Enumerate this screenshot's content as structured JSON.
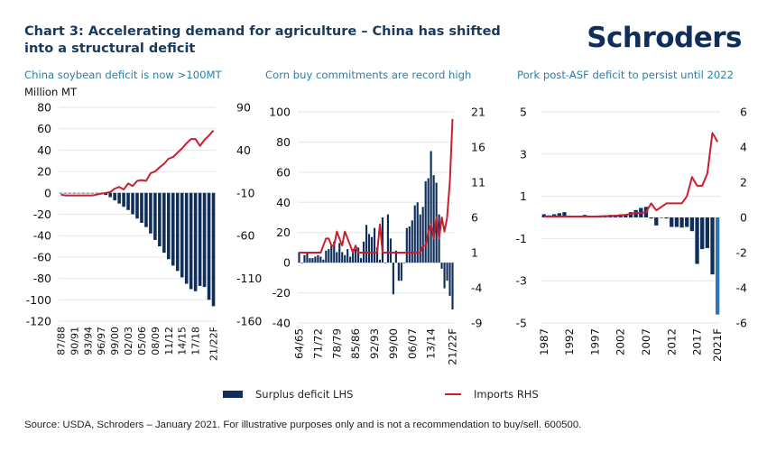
{
  "header": {
    "title": "Chart 3: Accelerating demand for agriculture – China has shifted into a structural deficit",
    "logo": "Schroders"
  },
  "colors": {
    "bar": "#0f2e5a",
    "bar_forecast": "#2e75b6",
    "line": "#c8202f",
    "grid": "#e6e6e6",
    "subtitle": "#2b7fa6"
  },
  "legend": {
    "bar_label": "Surplus deficit LHS",
    "line_label": "Imports RHS"
  },
  "footer": {
    "source": "Source: USDA, Schroders – January 2021. For illustrative purposes only and is not a recommendation to buy/sell. 600500."
  },
  "chart_data": [
    {
      "type": "bar",
      "title": "China soybean deficit is now >100MT",
      "ylabel": "Million MT",
      "xlabel": "",
      "grid": true,
      "legend": "bottom",
      "ylim_left": [
        -120,
        80
      ],
      "left_ticks": [
        80,
        60,
        40,
        20,
        0,
        -20,
        -40,
        -60,
        -80,
        -100,
        -120
      ],
      "ylim_right": [
        -160,
        90
      ],
      "right_ticks": [
        90,
        40,
        -10,
        -60,
        -110,
        -160
      ],
      "x_tick_labels": [
        "87/88",
        "90/91",
        "93/94",
        "96/97",
        "99/00",
        "02/03",
        "05/06",
        "08/09",
        "11/12",
        "14/15",
        "17/18",
        "21/22F"
      ],
      "categories": [
        "87/88",
        "88/89",
        "89/90",
        "90/91",
        "91/92",
        "92/93",
        "93/94",
        "94/95",
        "95/96",
        "96/97",
        "97/98",
        "98/99",
        "99/00",
        "00/01",
        "01/02",
        "02/03",
        "03/04",
        "04/05",
        "05/06",
        "06/07",
        "07/08",
        "08/09",
        "09/10",
        "10/11",
        "11/12",
        "12/13",
        "13/14",
        "14/15",
        "15/16",
        "16/17",
        "17/18",
        "18/19",
        "19/20",
        "20/21",
        "21/22F"
      ],
      "series": [
        {
          "name": "Surplus deficit LHS",
          "axis": "left",
          "values": [
            0,
            0,
            0,
            0,
            0,
            0,
            0,
            0,
            0,
            0,
            -2,
            -4,
            -7,
            -10,
            -13,
            -16,
            -20,
            -24,
            -28,
            -32,
            -38,
            -44,
            -50,
            -56,
            -62,
            -68,
            -73,
            -79,
            -85,
            -90,
            -92,
            -87,
            -88,
            -100,
            -106
          ]
        },
        {
          "name": "Imports RHS",
          "axis": "right",
          "values": [
            -12,
            -13,
            -13,
            -13,
            -13,
            -13,
            -13,
            -13,
            -12,
            -11,
            -10,
            -9,
            -5,
            -3,
            -6,
            1,
            -2,
            4,
            5,
            4,
            13,
            15,
            20,
            24,
            30,
            32,
            37,
            42,
            48,
            53,
            53,
            45,
            52,
            57,
            63
          ]
        }
      ]
    },
    {
      "type": "bar",
      "title": "Corn buy commitments are record high",
      "xlabel": "",
      "grid": true,
      "legend": "bottom",
      "ylim_left": [
        -40,
        100
      ],
      "left_ticks": [
        100,
        80,
        60,
        40,
        20,
        0,
        -20,
        -40
      ],
      "ylim_right": [
        -9,
        21
      ],
      "right_ticks": [
        21,
        16,
        11,
        6,
        1,
        -4,
        -9
      ],
      "x_tick_labels": [
        "64/65",
        "71/72",
        "78/79",
        "85/86",
        "92/93",
        "99/00",
        "06/07",
        "13/14",
        "21/22F"
      ],
      "categories": [
        "64/65",
        "65/66",
        "66/67",
        "67/68",
        "68/69",
        "69/70",
        "70/71",
        "71/72",
        "72/73",
        "73/74",
        "74/75",
        "75/76",
        "76/77",
        "77/78",
        "78/79",
        "79/80",
        "80/81",
        "81/82",
        "82/83",
        "83/84",
        "84/85",
        "85/86",
        "86/87",
        "87/88",
        "88/89",
        "89/90",
        "90/91",
        "91/92",
        "92/93",
        "93/94",
        "94/95",
        "95/96",
        "96/97",
        "97/98",
        "98/99",
        "99/00",
        "00/01",
        "01/02",
        "02/03",
        "03/04",
        "04/05",
        "05/06",
        "06/07",
        "07/08",
        "08/09",
        "09/10",
        "10/11",
        "11/12",
        "12/13",
        "13/14",
        "14/15",
        "15/16",
        "16/17",
        "17/18",
        "18/19",
        "19/20",
        "20/21",
        "21/22F"
      ],
      "series": [
        {
          "name": "Surplus deficit LHS",
          "axis": "left",
          "values": [
            7,
            0,
            5,
            7,
            3,
            3,
            4,
            5,
            4,
            2,
            8,
            9,
            12,
            14,
            7,
            13,
            7,
            5,
            9,
            4,
            9,
            9,
            10,
            3,
            14,
            25,
            19,
            17,
            23,
            10,
            2,
            30,
            0,
            32,
            16,
            -21,
            8,
            -12,
            -12,
            0,
            23,
            24,
            28,
            38,
            40,
            32,
            37,
            54,
            56,
            74,
            58,
            53,
            32,
            -4,
            -17,
            -12,
            -22,
            -31
          ]
        },
        {
          "name": "Imports RHS",
          "axis": "right",
          "values": [
            1,
            1,
            1,
            1,
            1,
            1,
            1,
            1,
            1,
            2,
            3,
            3,
            2,
            2,
            4,
            3,
            2,
            4,
            3,
            2,
            1,
            2,
            1,
            1,
            1,
            1,
            1,
            1,
            1,
            1,
            5,
            1,
            1,
            1,
            1,
            1,
            1,
            1,
            1,
            1,
            1,
            1,
            1,
            1,
            1,
            1,
            2,
            2,
            4,
            5,
            3,
            6,
            3,
            6,
            4,
            6,
            11,
            20
          ]
        }
      ]
    },
    {
      "type": "bar",
      "title": "Pork post-ASF deficit to persist until 2022",
      "xlabel": "",
      "grid": true,
      "legend": "bottom",
      "ylim_left": [
        -5,
        5
      ],
      "left_ticks": [
        5,
        3,
        1,
        -1,
        -3,
        -5
      ],
      "ylim_right": [
        -6,
        6
      ],
      "right_ticks": [
        6,
        4,
        2,
        0,
        -2,
        -4,
        -6
      ],
      "x_tick_labels": [
        "1987",
        "1992",
        "1997",
        "2002",
        "2007",
        "2012",
        "2017",
        "2021F"
      ],
      "categories": [
        "1987",
        "1988",
        "1989",
        "1990",
        "1991",
        "1992",
        "1993",
        "1994",
        "1995",
        "1996",
        "1997",
        "1998",
        "1999",
        "2000",
        "2001",
        "2002",
        "2003",
        "2004",
        "2005",
        "2006",
        "2007",
        "2008",
        "2009",
        "2010",
        "2011",
        "2012",
        "2013",
        "2014",
        "2015",
        "2016",
        "2017",
        "2018",
        "2019",
        "2020",
        "2021F"
      ],
      "series": [
        {
          "name": "Surplus deficit LHS",
          "axis": "left",
          "values": [
            0.15,
            0.1,
            0.15,
            0.2,
            0.25,
            0.08,
            0.05,
            0.08,
            0.12,
            0.08,
            0.05,
            0.08,
            0.1,
            0.12,
            0.1,
            0.15,
            0.12,
            0.25,
            0.35,
            0.45,
            0.5,
            -0.05,
            -0.38,
            0,
            -0.05,
            -0.45,
            -0.45,
            -0.48,
            -0.45,
            -0.65,
            -2.2,
            -1.5,
            -1.45,
            -2.7,
            -4.6
          ]
        },
        {
          "name": "Imports RHS",
          "axis": "right",
          "values": [
            0.05,
            0.05,
            0.05,
            0.05,
            0.05,
            0.05,
            0.05,
            0.05,
            0.05,
            0.05,
            0.05,
            0.06,
            0.07,
            0.08,
            0.1,
            0.12,
            0.15,
            0.2,
            0.25,
            0.25,
            0.3,
            0.8,
            0.4,
            0.6,
            0.8,
            0.8,
            0.8,
            0.8,
            1.2,
            2.3,
            1.8,
            1.8,
            2.5,
            4.8,
            4.3
          ]
        }
      ]
    }
  ]
}
